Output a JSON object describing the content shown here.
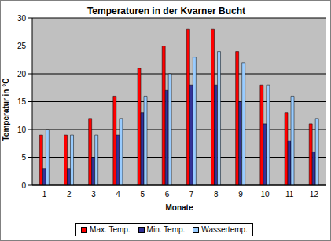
{
  "chart_data": {
    "type": "bar",
    "title": "Temperaturen in der Kvarner Bucht",
    "x_label": "Monate",
    "y_label": "Temperatur in °C",
    "categories": [
      "1",
      "2",
      "3",
      "4",
      "5",
      "6",
      "7",
      "8",
      "9",
      "10",
      "11",
      "12"
    ],
    "series": [
      {
        "name": "Max. Temp.",
        "color": "#ff0000",
        "values": [
          9,
          9,
          12,
          16,
          21,
          25,
          28,
          28,
          24,
          18,
          13,
          11
        ]
      },
      {
        "name": "Min. Temp.",
        "color": "#333399",
        "values": [
          3,
          3,
          5,
          9,
          13,
          17,
          18,
          18,
          15,
          11,
          8,
          6
        ]
      },
      {
        "name": "Wassertemp.",
        "color": "#99ccff",
        "values": [
          10,
          9,
          9,
          12,
          16,
          20,
          23,
          24,
          22,
          18,
          16,
          12
        ]
      }
    ],
    "ylim": [
      0,
      30
    ],
    "yticks": [
      0,
      5,
      10,
      15,
      20,
      25,
      30
    ],
    "grid": true,
    "legend": "bottom"
  }
}
